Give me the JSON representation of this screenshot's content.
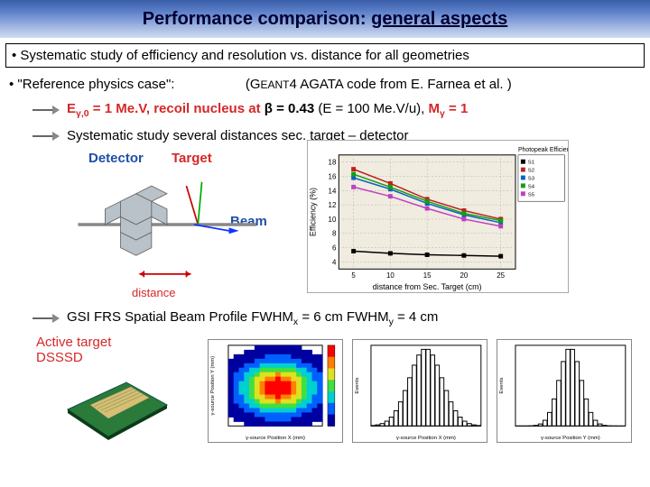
{
  "title": {
    "prefix": "Performance comparison:",
    "suffix": "general aspects"
  },
  "bullet1": "• Systematic study of efficiency and resolution vs. distance for all geometries",
  "line2": {
    "left": "• \"Reference physics case\":",
    "right_prefix": "(G",
    "right_sc": "EANT",
    "right_suffix": "4 AGATA code from E. Farnea et al. )"
  },
  "arrow1": {
    "p1a": "E",
    "p1sub": "γ,0",
    "p1b": " = 1 Me.V, recoil nucleus at ",
    "p2a": "β = 0.43",
    "p2b": " (E = 100 Me.V/u), ",
    "p3a": "M",
    "p3sub": "γ",
    "p3b": " = 1"
  },
  "arrow2": "Systematic study several distances sec. target – detector",
  "labels": {
    "detector": "Detector",
    "target": "Target",
    "beam": "Beam",
    "distance": "distance"
  },
  "chart": {
    "title": "Photopeak Efficiency vs Distance",
    "ylabel": "Efficiency (%)",
    "xlabel": "distance from Sec. Target (cm)",
    "xticks": [
      5,
      10,
      15,
      20,
      25
    ],
    "yticks": [
      4,
      6,
      8,
      10,
      12,
      14,
      16,
      18
    ],
    "xlim": [
      3,
      27
    ],
    "ylim": [
      3,
      19
    ],
    "bg": "#f0ece0",
    "grid": "#b0b0b0",
    "series": [
      {
        "color": "#000000",
        "marker": "square",
        "x": [
          5,
          10,
          15,
          20,
          25
        ],
        "y": [
          5.5,
          5.2,
          5.0,
          4.9,
          4.8
        ]
      },
      {
        "color": "#c02020",
        "marker": "square",
        "x": [
          5,
          10,
          15,
          20,
          25
        ],
        "y": [
          17.0,
          15.0,
          12.8,
          11.2,
          10.0
        ]
      },
      {
        "color": "#1060c0",
        "marker": "square",
        "x": [
          5,
          10,
          15,
          20,
          25
        ],
        "y": [
          15.8,
          14.2,
          12.2,
          10.6,
          9.5
        ]
      },
      {
        "color": "#10a010",
        "marker": "square",
        "x": [
          5,
          10,
          15,
          20,
          25
        ],
        "y": [
          16.3,
          14.5,
          12.5,
          10.8,
          9.8
        ]
      },
      {
        "color": "#c040c0",
        "marker": "square",
        "x": [
          5,
          10,
          15,
          20,
          25
        ],
        "y": [
          14.5,
          13.2,
          11.5,
          10.0,
          9.0
        ]
      }
    ],
    "legend_items": [
      "S1",
      "S2",
      "S3",
      "S4",
      "S5"
    ]
  },
  "gsi": {
    "prefix": "GSI FRS Spatial Beam Profile  FWHM",
    "sub1": "x",
    "mid": " = 6 cm FWHM",
    "sub2": "y",
    "suffix": " = 4 cm"
  },
  "active_target": "Active target\nDSSSD",
  "heatmap": {
    "xlabel": "γ-source Position X (mm)",
    "ylabel": "γ-source Position Y (mm)",
    "palette": [
      "#0000a0",
      "#0060ff",
      "#00d0d0",
      "#40e040",
      "#e0e020",
      "#ff8000",
      "#ff0000"
    ]
  },
  "gauss": {
    "xlabel1": "γ-source Position X (mm)",
    "xlabel2": "γ-source Position Y (mm)",
    "ylabel": "Events",
    "color": "#000000",
    "xlim": [
      -60,
      60
    ],
    "g1": {
      "mu": 0,
      "sigma": 18,
      "n": 24
    },
    "g2": {
      "mu": 0,
      "sigma": 12,
      "n": 24
    }
  },
  "colors": {
    "title_text": "#000033",
    "red": "#d62728",
    "blue": "#1f4fa8"
  }
}
